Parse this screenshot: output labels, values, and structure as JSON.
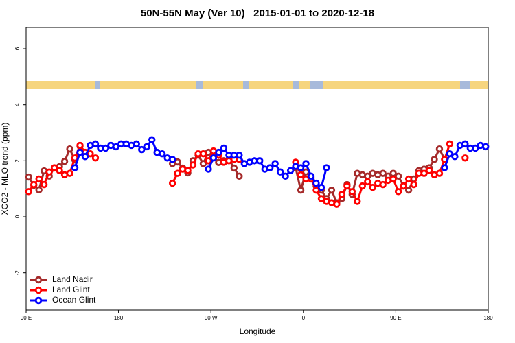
{
  "chart_data": {
    "type": "line",
    "title": "50N-55N May (Ver 10)   2015-01-01 to 2020-12-18",
    "x_label": "Longitude",
    "y_label": "XCO2 - MLO trend (ppm)",
    "xlim": [
      90,
      540
    ],
    "xticks": [
      {
        "value": 90,
        "label": "90 E"
      },
      {
        "value": 180,
        "label": "180"
      },
      {
        "value": 270,
        "label": "90 W"
      },
      {
        "value": 360,
        "label": "0"
      },
      {
        "value": 450,
        "label": "90 E"
      },
      {
        "value": 540,
        "label": "180"
      }
    ],
    "ylim": [
      -3.33,
      6.76
    ],
    "yticks": [
      -2,
      0,
      2,
      4,
      6
    ],
    "legend": "bottom-left",
    "x": [
      92.5,
      97.5,
      102.5,
      107.5,
      112.5,
      117.5,
      122.5,
      127.5,
      132.5,
      137.5,
      142.5,
      147.5,
      152.5,
      157.5,
      162.5,
      167.5,
      172.5,
      177.5,
      182.5,
      187.5,
      192.5,
      197.5,
      202.5,
      207.5,
      212.5,
      217.5,
      222.5,
      227.5,
      232.5,
      237.5,
      242.5,
      247.5,
      252.5,
      257.5,
      262.5,
      267.5,
      272.5,
      277.5,
      282.5,
      287.5,
      292.5,
      297.5,
      302.5,
      307.5,
      312.5,
      317.5,
      322.5,
      327.5,
      332.5,
      337.5,
      342.5,
      347.5,
      352.5,
      357.5,
      362.5,
      367.5,
      372.5,
      377.5,
      382.5,
      387.5,
      392.5,
      397.5,
      402.5,
      407.5,
      412.5,
      417.5,
      422.5,
      427.5,
      432.5,
      437.5,
      442.5,
      447.5,
      452.5,
      457.5,
      462.5,
      467.5,
      472.5,
      477.5,
      482.5,
      487.5,
      492.5,
      497.5,
      502.5,
      507.5,
      512.5,
      517.5,
      522.5,
      527.5,
      532.5,
      537.5
    ],
    "series": [
      {
        "name": "Land Nadir",
        "color": "#a52a2a",
        "values": [
          1.42,
          1.13,
          0.96,
          1.64,
          1.45,
          1.74,
          1.79,
          1.98,
          2.42,
          2.03,
          2.52,
          null,
          null,
          null,
          null,
          null,
          null,
          null,
          null,
          null,
          null,
          null,
          null,
          null,
          null,
          null,
          null,
          null,
          1.9,
          1.96,
          1.74,
          1.57,
          2.0,
          2.2,
          1.9,
          2.3,
          2.15,
          1.94,
          2.0,
          2.05,
          1.74,
          1.45,
          null,
          null,
          null,
          null,
          null,
          null,
          null,
          null,
          null,
          null,
          1.75,
          0.95,
          1.6,
          1.4,
          1.1,
          0.95,
          0.65,
          0.95,
          0.5,
          0.65,
          1.15,
          0.8,
          1.55,
          1.5,
          1.45,
          1.55,
          1.5,
          1.55,
          1.45,
          1.55,
          1.45,
          1.1,
          0.95,
          1.35,
          1.65,
          1.7,
          1.75,
          2.05,
          2.42,
          2.05,
          null,
          null,
          null,
          null,
          null,
          null,
          null,
          null
        ]
      },
      {
        "name": "Land Glint",
        "color": "#ff0000",
        "values": [
          0.9,
          1.15,
          1.35,
          1.15,
          1.6,
          1.75,
          1.65,
          1.5,
          1.55,
          2.1,
          2.55,
          2.3,
          2.25,
          2.1,
          null,
          null,
          null,
          null,
          null,
          null,
          null,
          null,
          null,
          null,
          null,
          null,
          null,
          null,
          1.2,
          1.55,
          1.7,
          1.65,
          1.85,
          2.25,
          2.25,
          2.0,
          2.35,
          2.2,
          1.95,
          2.0,
          2.05,
          2.05,
          null,
          null,
          null,
          null,
          null,
          null,
          null,
          null,
          null,
          null,
          1.95,
          1.5,
          1.35,
          1.35,
          0.95,
          0.65,
          0.55,
          0.5,
          0.45,
          0.8,
          1.1,
          0.9,
          0.55,
          1.1,
          1.25,
          1.05,
          1.2,
          1.15,
          1.3,
          1.35,
          0.9,
          1.1,
          1.35,
          1.15,
          1.55,
          1.55,
          1.65,
          1.5,
          1.55,
          2.05,
          2.6,
          null,
          null,
          2.1,
          null,
          null,
          null,
          null
        ]
      },
      {
        "name": "Ocean Glint",
        "color": "#0000ff",
        "values": [
          null,
          null,
          null,
          null,
          null,
          null,
          null,
          null,
          null,
          1.75,
          2.3,
          2.15,
          2.55,
          2.6,
          2.45,
          2.45,
          2.55,
          2.5,
          2.6,
          2.6,
          2.55,
          2.6,
          2.4,
          2.5,
          2.75,
          2.3,
          2.25,
          2.1,
          2.05,
          null,
          null,
          null,
          null,
          null,
          null,
          1.7,
          2.1,
          2.3,
          2.45,
          2.2,
          2.2,
          2.2,
          1.9,
          1.95,
          2.0,
          2.0,
          1.7,
          1.75,
          1.9,
          1.6,
          1.45,
          1.65,
          1.8,
          1.75,
          1.9,
          1.45,
          1.2,
          1.05,
          1.75,
          null,
          null,
          null,
          null,
          null,
          null,
          null,
          null,
          null,
          null,
          null,
          null,
          null,
          null,
          null,
          null,
          null,
          null,
          null,
          null,
          null,
          null,
          1.75,
          2.25,
          2.15,
          2.55,
          2.6,
          2.45,
          2.45,
          2.55,
          2.5
        ]
      }
    ]
  }
}
